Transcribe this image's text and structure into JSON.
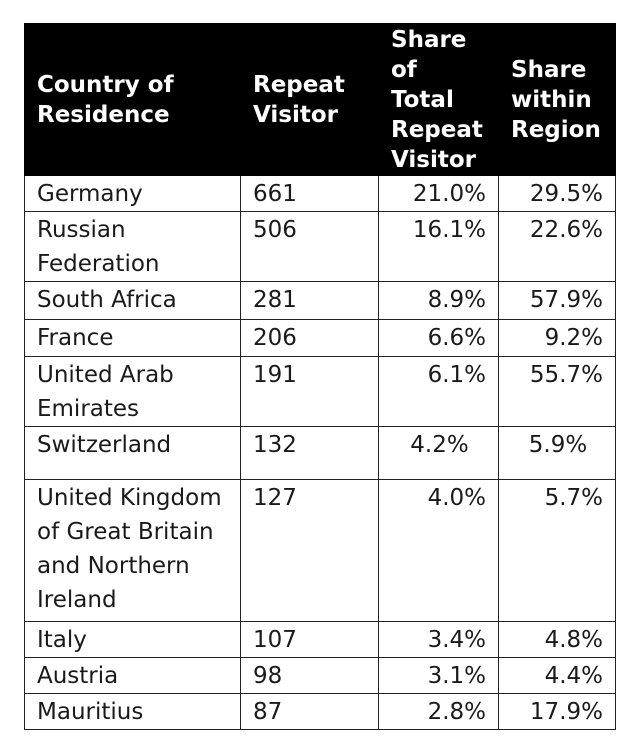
{
  "table": {
    "headers": [
      "Country of\nResidence",
      "Repeat\nVisitor",
      "Share\nof\nTotal\nRepeat\nVisitor",
      "Share\nwithin\nRegion"
    ],
    "rows": [
      {
        "country": "Germany",
        "repeat": "661",
        "share_total": "21.0%",
        "share_region": "29.5%"
      },
      {
        "country": "Russian\nFederation",
        "repeat": "506",
        "share_total": "16.1%",
        "share_region": "22.6%"
      },
      {
        "country": "South Africa",
        "repeat": "281",
        "share_total": "8.9%",
        "share_region": "57.9%"
      },
      {
        "country": "France",
        "repeat": "206",
        "share_total": "6.6%",
        "share_region": "9.2%"
      },
      {
        "country": "United Arab\nEmirates",
        "repeat": "191",
        "share_total": "6.1%",
        "share_region": "55.7%"
      },
      {
        "country": "Switzerland",
        "repeat": "132",
        "share_total": "4.2%",
        "share_region": "5.9%"
      },
      {
        "country": "United Kingdom\nof Great Britain\nand Northern\nIreland",
        "repeat": "127",
        "share_total": "4.0%",
        "share_region": "5.7%"
      },
      {
        "country": "Italy",
        "repeat": "107",
        "share_total": "3.4%",
        "share_region": "4.8%"
      },
      {
        "country": "Austria",
        "repeat": "98",
        "share_total": "3.1%",
        "share_region": "4.4%"
      },
      {
        "country": "Mauritius",
        "repeat": "87",
        "share_total": "2.8%",
        "share_region": "17.9%"
      }
    ]
  }
}
